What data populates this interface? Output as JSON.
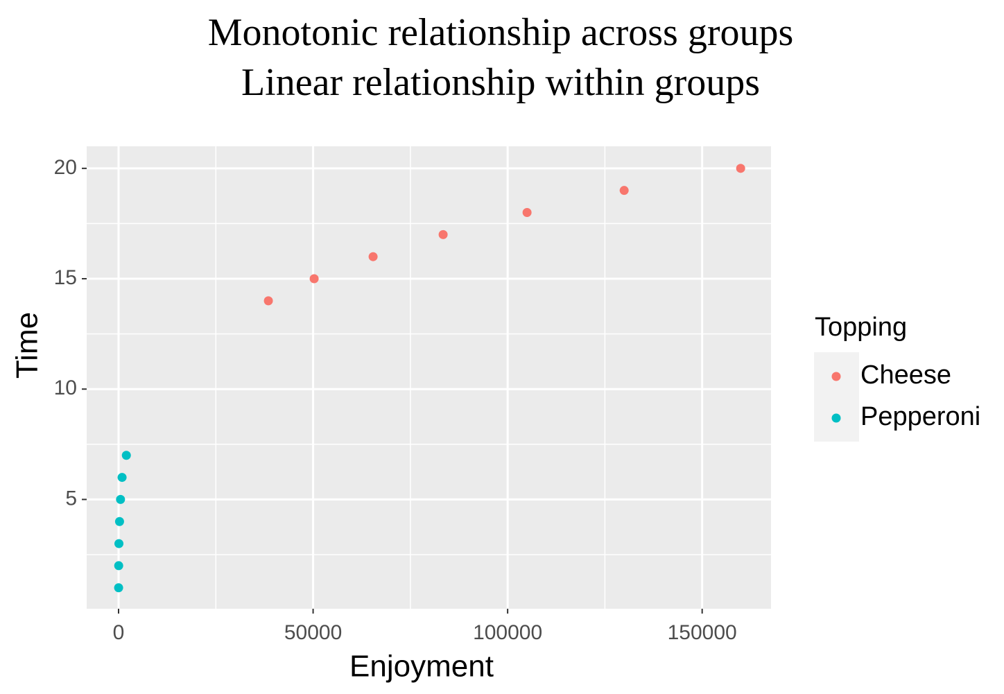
{
  "chart_data": {
    "type": "scatter",
    "title": "Monotonic relationship across groups",
    "subtitle": "Linear relationship within groups",
    "x_label": "Enjoyment",
    "y_label": "Time",
    "legend_title": "Topping",
    "xlim": [
      -8200,
      167700
    ],
    "ylim": [
      0.05,
      21
    ],
    "xticks": [
      0,
      50000,
      100000,
      150000
    ],
    "yticks": [
      5,
      10,
      15,
      20
    ],
    "minor_xticks": [
      25000,
      75000,
      125000
    ],
    "minor_yticks": [
      2.5,
      7.5,
      12.5,
      17.5
    ],
    "grid": true,
    "legend": "right",
    "series": [
      {
        "name": "Cheese",
        "color": "#f8766d",
        "x": [
          38500,
          50270,
          65420,
          83420,
          104990,
          129950,
          159890
        ],
        "values": [
          14,
          15,
          16,
          17,
          18,
          19,
          20
        ]
      },
      {
        "name": "Pepperoni",
        "color": "#00bfc4",
        "x": [
          10,
          30,
          90,
          250,
          500,
          900,
          2000
        ],
        "values": [
          1,
          2,
          3,
          4,
          5,
          6,
          7
        ]
      }
    ]
  }
}
